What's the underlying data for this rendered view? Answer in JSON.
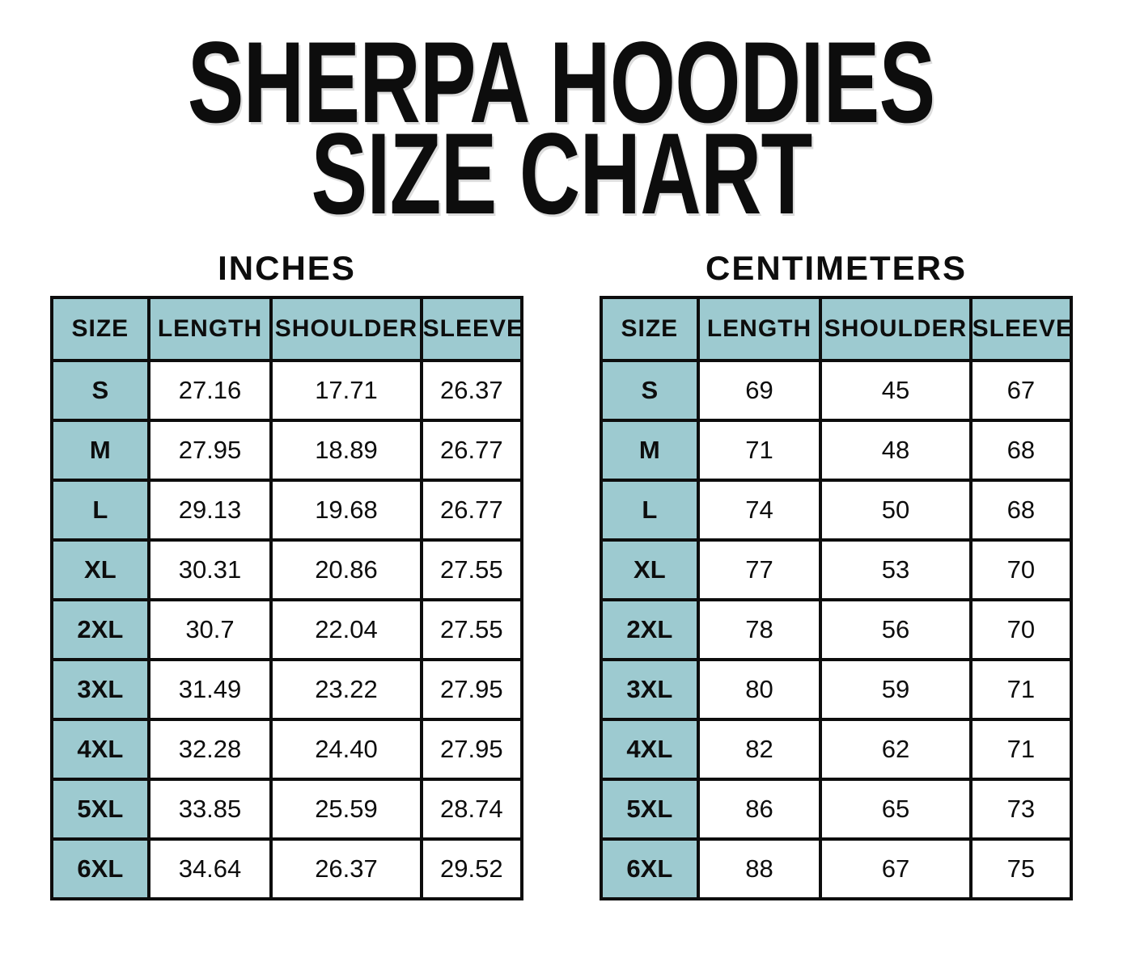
{
  "title_line1": "SHERPA HOODIES",
  "title_line2": "SIZE CHART",
  "colors": {
    "header_fill": "#9DCAD0",
    "border": "#0d0d0d",
    "background": "#ffffff",
    "text": "#0d0d0d"
  },
  "chart_data": [
    {
      "type": "table",
      "title": "INCHES",
      "columns": [
        "SIZE",
        "LENGTH",
        "SHOULDER",
        "SLEEVE"
      ],
      "rows": [
        [
          "S",
          "27.16",
          "17.71",
          "26.37"
        ],
        [
          "M",
          "27.95",
          "18.89",
          "26.77"
        ],
        [
          "L",
          "29.13",
          "19.68",
          "26.77"
        ],
        [
          "XL",
          "30.31",
          "20.86",
          "27.55"
        ],
        [
          "2XL",
          "30.7",
          "22.04",
          "27.55"
        ],
        [
          "3XL",
          "31.49",
          "23.22",
          "27.95"
        ],
        [
          "4XL",
          "32.28",
          "24.40",
          "27.95"
        ],
        [
          "5XL",
          "33.85",
          "25.59",
          "28.74"
        ],
        [
          "6XL",
          "34.64",
          "26.37",
          "29.52"
        ]
      ]
    },
    {
      "type": "table",
      "title": "CENTIMETERS",
      "columns": [
        "SIZE",
        "LENGTH",
        "SHOULDER",
        "SLEEVE"
      ],
      "rows": [
        [
          "S",
          "69",
          "45",
          "67"
        ],
        [
          "M",
          "71",
          "48",
          "68"
        ],
        [
          "L",
          "74",
          "50",
          "68"
        ],
        [
          "XL",
          "77",
          "53",
          "70"
        ],
        [
          "2XL",
          "78",
          "56",
          "70"
        ],
        [
          "3XL",
          "80",
          "59",
          "71"
        ],
        [
          "4XL",
          "82",
          "62",
          "71"
        ],
        [
          "5XL",
          "86",
          "65",
          "73"
        ],
        [
          "6XL",
          "88",
          "67",
          "75"
        ]
      ]
    }
  ]
}
